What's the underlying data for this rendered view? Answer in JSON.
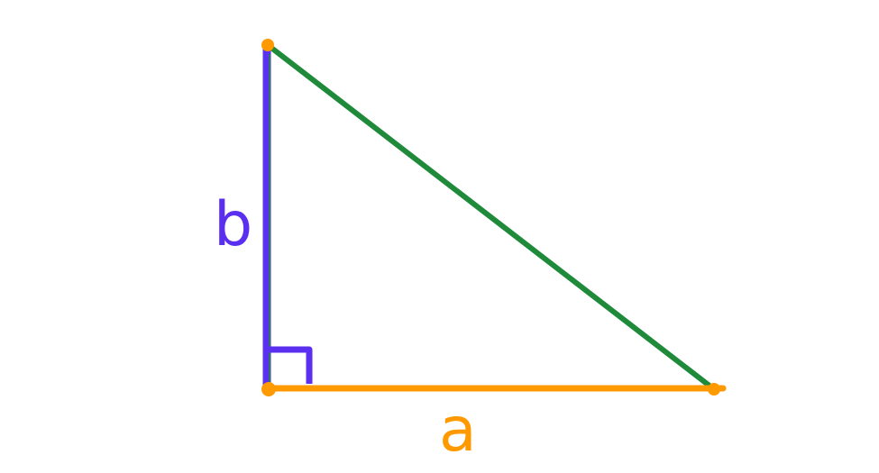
{
  "diagram": {
    "labels": {
      "vertical_leg": "b",
      "horizontal_leg": "a"
    },
    "colors": {
      "vertical_leg": "#5a2ff0",
      "hypotenuse": "#1e8a3a",
      "horizontal_leg": "#ff9900",
      "vertices": "#ff9900"
    },
    "shape": "right triangle",
    "right_angle_marker": true
  }
}
